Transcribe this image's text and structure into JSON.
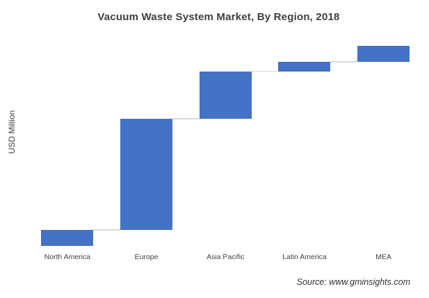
{
  "title": "Vacuum Waste System Market, By Region, 2018",
  "y_axis_label": "USD Million",
  "source_note": "Source: www.gminsights.com",
  "colors": {
    "bar": "#4472C4",
    "connector": "#D9D9D9",
    "title_text": "#3f3f3f",
    "label_text": "#404040",
    "source_text": "#333333",
    "background": "#FFFFFF"
  },
  "chart_data": {
    "type": "bar",
    "subtype": "waterfall",
    "title": "Vacuum Waste System Market, By Region, 2018",
    "xlabel": "",
    "ylabel": "USD Million",
    "categories": [
      "North America",
      "Europe",
      "Asia Pacific",
      "Latin America",
      "MEA"
    ],
    "values_relative": [
      23,
      160,
      68.5,
      13.5,
      23
    ],
    "cumulative_relative": [
      23,
      183,
      251.5,
      265,
      288
    ],
    "values_pct_of_total": [
      8.0,
      55.6,
      23.8,
      4.7,
      8.0
    ],
    "y_axis_ticks": "none",
    "grid": false,
    "legend": false,
    "note": "Waterfall chart; no numeric tick labels shown, segment values estimated in relative units from bar heights (each bar starts where the previous one ends, linked by light gray connector lines)."
  }
}
